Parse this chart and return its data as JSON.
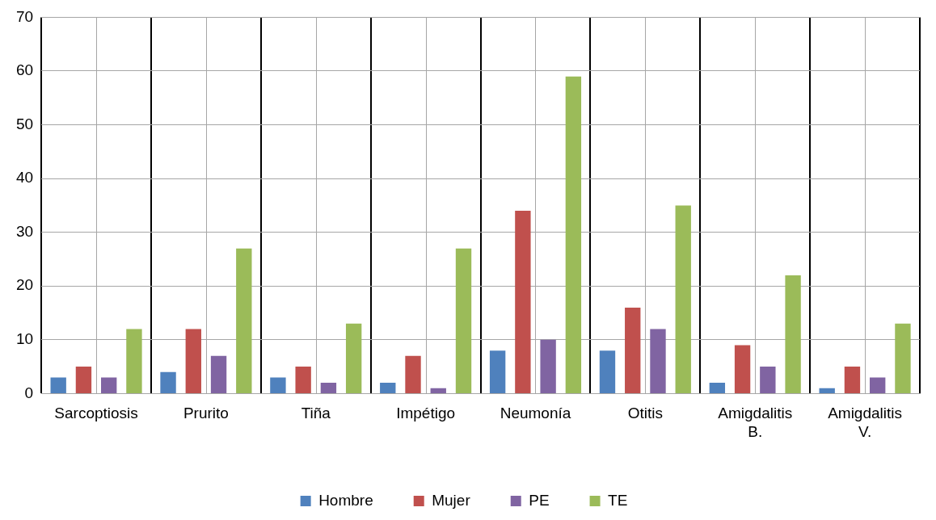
{
  "chart_data": {
    "type": "bar",
    "categories": [
      "Sarcoptiosis",
      "Prurito",
      "Tiña",
      "Impétigo",
      "Neumonía",
      "Otitis",
      "Amigdalitis B.",
      "Amigdalitis V."
    ],
    "series": [
      {
        "name": "Hombre",
        "color": "#4f81bd",
        "values": [
          3,
          4,
          3,
          2,
          8,
          8,
          2,
          1
        ]
      },
      {
        "name": "Mujer",
        "color": "#c0504d",
        "values": [
          5,
          12,
          5,
          7,
          34,
          16,
          9,
          5
        ]
      },
      {
        "name": "PE",
        "color": "#8064a2",
        "values": [
          3,
          7,
          2,
          1,
          10,
          12,
          5,
          3
        ]
      },
      {
        "name": "TE",
        "color": "#9bbb59",
        "values": [
          12,
          27,
          13,
          27,
          59,
          35,
          22,
          13
        ]
      }
    ],
    "ylim": [
      0,
      70
    ],
    "yticks": [
      0,
      10,
      20,
      30,
      40,
      50,
      60,
      70
    ],
    "grid": true,
    "legend": "bottom"
  }
}
